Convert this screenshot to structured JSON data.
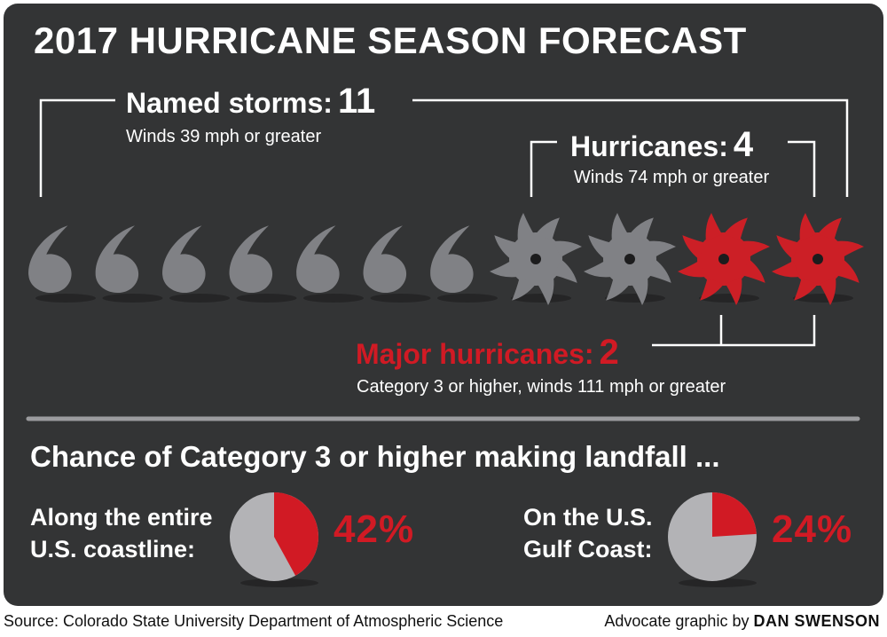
{
  "title": "2017 HURRICANE SEASON FORECAST",
  "named_storms": {
    "label": "Named storms:",
    "count": "11",
    "desc": "Winds 39 mph or greater"
  },
  "hurricanes": {
    "label": "Hurricanes:",
    "count": "4",
    "desc": "Winds 74 mph or greater"
  },
  "major_hurricanes": {
    "label": "Major hurricanes:",
    "count": "2",
    "desc": "Category 3 or higher, winds 111 mph or greater"
  },
  "landfall_heading": "Chance of Category 3 or higher making landfall ...",
  "colors": {
    "background": "#333435",
    "grey_icon": "#808185",
    "red_icon": "#cc1f26",
    "accent_red": "#d11a24",
    "pie_grey": "#b3b3b6"
  },
  "chart_data": [
    {
      "type": "pictograph",
      "series": [
        {
          "name": "Named storms",
          "value": 11,
          "icon": "tropical-storm-icon"
        },
        {
          "name": "Hurricanes",
          "value": 4,
          "icon": "hurricane-icon"
        },
        {
          "name": "Major hurricanes",
          "value": 2,
          "icon": "major-hurricane-icon"
        }
      ]
    },
    {
      "type": "pie",
      "label_lines": [
        "Along the entire",
        "U.S. coastline:"
      ],
      "value_text": "42%",
      "values": [
        42,
        58
      ]
    },
    {
      "type": "pie",
      "label_lines": [
        "On the U.S.",
        "Gulf Coast:"
      ],
      "value_text": "24%",
      "values": [
        24,
        76
      ]
    }
  ],
  "footer": {
    "source": "Source: Colorado State University Department of Atmospheric Science",
    "credit_prefix": "Advocate graphic by",
    "credit_name": "DAN SWENSON"
  }
}
